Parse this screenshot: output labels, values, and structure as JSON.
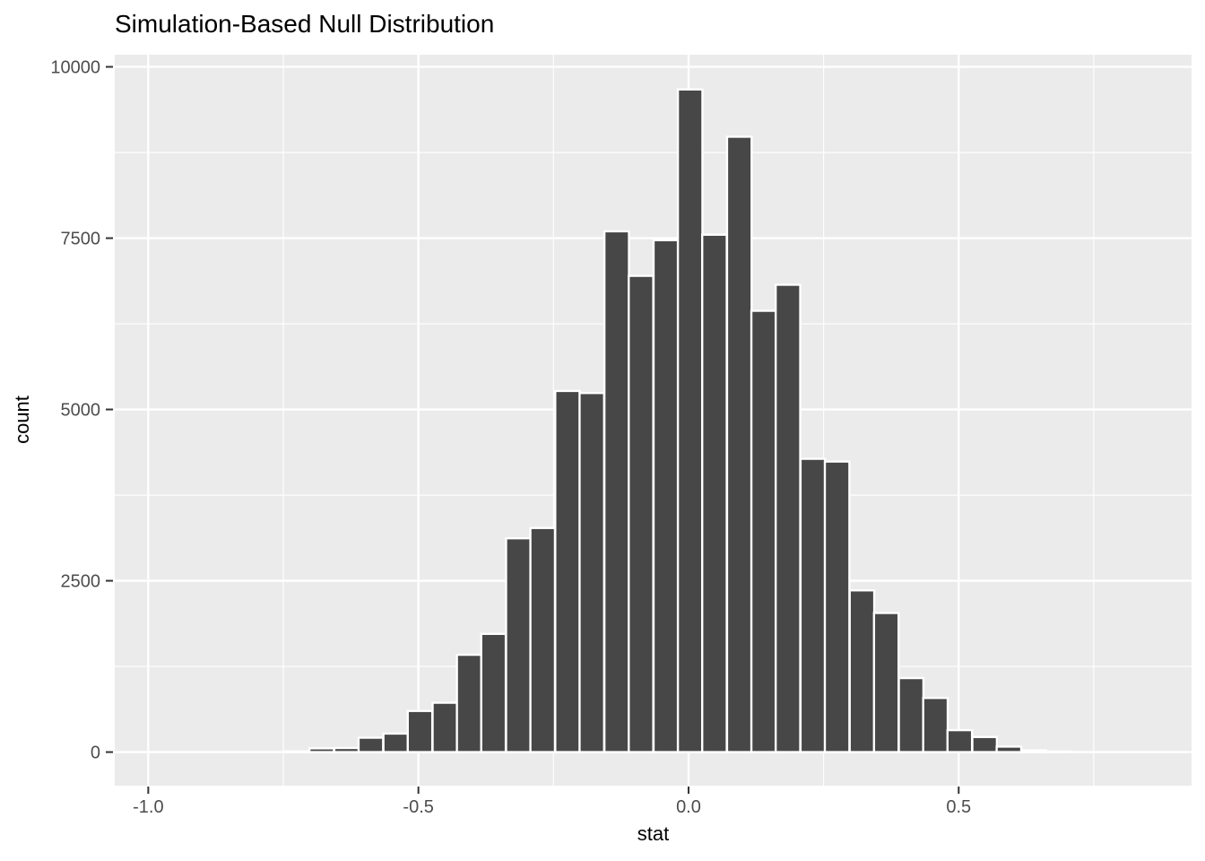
{
  "chart_data": {
    "type": "bar",
    "subtype": "histogram",
    "title": "Simulation-Based Null Distribution",
    "xlabel": "stat",
    "ylabel": "count",
    "legend": false,
    "grid": true,
    "x_ticks": [
      {
        "value": -1.0,
        "label": "-1.0"
      },
      {
        "value": -0.5,
        "label": "-0.5"
      },
      {
        "value": 0.0,
        "label": "0.0"
      },
      {
        "value": 0.5,
        "label": "0.5"
      }
    ],
    "y_ticks": [
      {
        "value": 0,
        "label": "0"
      },
      {
        "value": 2500,
        "label": "2500"
      },
      {
        "value": 5000,
        "label": "5000"
      },
      {
        "value": 7500,
        "label": "7500"
      },
      {
        "value": 10000,
        "label": "10000"
      }
    ],
    "x_minor_ticks": [
      -0.75,
      -0.25,
      0.25,
      0.75
    ],
    "y_minor_ticks": [
      1250,
      3750,
      6250,
      8750
    ],
    "xlim": [
      -1.062,
      0.931
    ],
    "ylim": [
      -490,
      10177
    ],
    "bin_width": 0.04543,
    "bin_centers": [
      -0.724,
      -0.679,
      -0.633,
      -0.588,
      -0.542,
      -0.497,
      -0.451,
      -0.406,
      -0.361,
      -0.315,
      -0.27,
      -0.224,
      -0.179,
      -0.133,
      -0.088,
      -0.042,
      0.003,
      0.048,
      0.094,
      0.139,
      0.184,
      0.23,
      0.275,
      0.321,
      0.366,
      0.412,
      0.457,
      0.502,
      0.548,
      0.593,
      0.639,
      0.684
    ],
    "counts": [
      10,
      55,
      60,
      210,
      270,
      600,
      720,
      1420,
      1725,
      3120,
      3270,
      5270,
      5240,
      7600,
      6950,
      7470,
      9670,
      7550,
      8980,
      6440,
      6820,
      4280,
      4240,
      2360,
      2030,
      1080,
      790,
      320,
      220,
      80,
      25,
      8
    ],
    "colors": {
      "bar_fill": "#474747",
      "bar_stroke": "#FFFFFF",
      "panel_bg": "#EBEBEB",
      "grid": "#FFFFFF",
      "tick_mark": "#333333",
      "tick_label": "#4D4D4D",
      "title": "#000000",
      "axis_title": "#000000"
    }
  }
}
